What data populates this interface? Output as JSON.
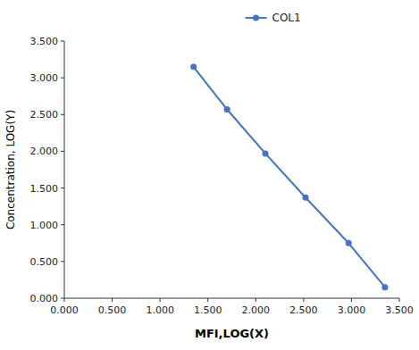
{
  "chart_data": {
    "type": "line",
    "x": [
      1.35,
      1.7,
      2.1,
      2.52,
      2.97,
      3.35
    ],
    "series": [
      {
        "name": "COL1",
        "color": "#4472C4",
        "marker": "circle",
        "line_style": "solid",
        "values": [
          3.15,
          2.57,
          1.97,
          1.37,
          0.75,
          0.15
        ]
      }
    ],
    "xlabel": "MFI,LOG(X)",
    "ylabel": "Concentration, LOG(Y)",
    "xlim": [
      0.0,
      3.5
    ],
    "ylim": [
      0.0,
      3.5
    ],
    "xticks": [
      {
        "value": 0.0,
        "label": "0.000"
      },
      {
        "value": 0.5,
        "label": "0.500"
      },
      {
        "value": 1.0,
        "label": "1.000"
      },
      {
        "value": 1.5,
        "label": "1.500"
      },
      {
        "value": 2.0,
        "label": "2.000"
      },
      {
        "value": 2.5,
        "label": "2.500"
      },
      {
        "value": 3.0,
        "label": "3.000"
      },
      {
        "value": 3.5,
        "label": "3.500"
      }
    ],
    "yticks": [
      {
        "value": 0.0,
        "label": "0.000"
      },
      {
        "value": 0.5,
        "label": "0.500"
      },
      {
        "value": 1.0,
        "label": "1.000"
      },
      {
        "value": 1.5,
        "label": "1.500"
      },
      {
        "value": 2.0,
        "label": "2.000"
      },
      {
        "value": 2.5,
        "label": "2.500"
      },
      {
        "value": 3.0,
        "label": "3.000"
      },
      {
        "value": 3.5,
        "label": "3.500"
      }
    ],
    "grid": false,
    "legend": "top"
  }
}
